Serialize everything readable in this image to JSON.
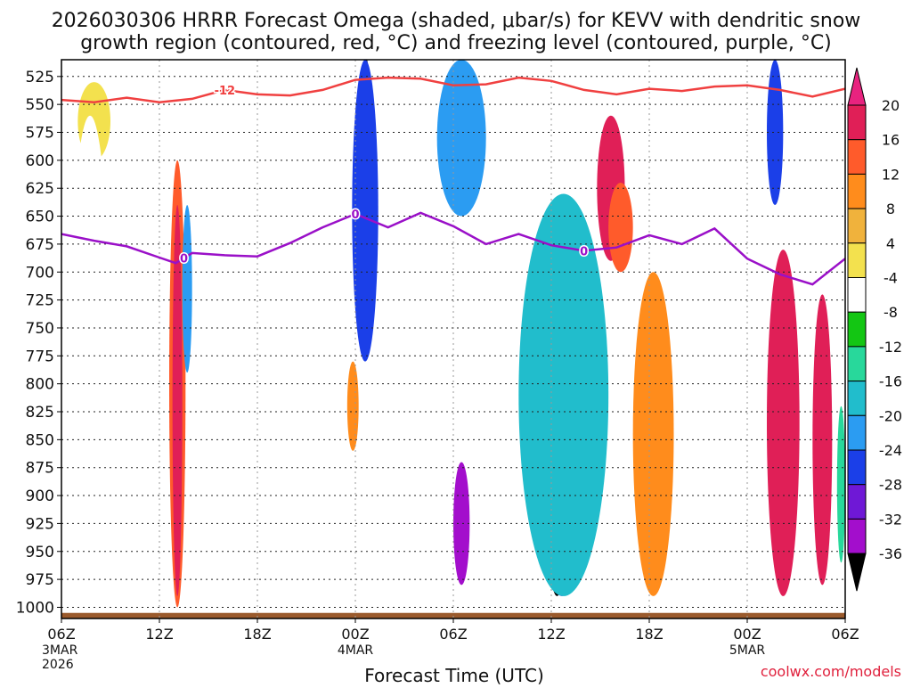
{
  "title_line1": "2026030306 HRRR Forecast Omega (shaded, μbar/s) for KEVV with dendritic snow",
  "title_line2": "growth region (contoured, red, °C) and freezing level (contoured, purple, °C)",
  "xlabel": "Forecast Time (UTC)",
  "watermark": "coolwx.com/models",
  "x_ticks": [
    "06Z",
    "12Z",
    "18Z",
    "00Z",
    "06Z",
    "12Z",
    "18Z",
    "00Z",
    "06Z"
  ],
  "x_subticks": [
    {
      "lines": [
        "3MAR",
        "2026"
      ]
    },
    {
      "lines": [
        "4MAR"
      ]
    },
    {
      "lines": [
        "5MAR"
      ]
    }
  ],
  "y_ticks": [
    525,
    550,
    575,
    600,
    625,
    650,
    675,
    700,
    725,
    750,
    775,
    800,
    825,
    850,
    875,
    900,
    925,
    950,
    975,
    1000
  ],
  "contour_labels": {
    "dgz": "-12",
    "freezing": "0"
  },
  "colorbar": {
    "labels": [
      "20",
      "16",
      "12",
      "8",
      "4",
      "-4",
      "-8",
      "-12",
      "-16",
      "-20",
      "-24",
      "-28",
      "-32",
      "-36"
    ],
    "colors": [
      "#e01f57",
      "#ff5b2b",
      "#ff8c1c",
      "#f0b23c",
      "#f3e14e",
      "#ffffff",
      "#13c613",
      "#28d89b",
      "#21bdcc",
      "#2b9cf2",
      "#1b3fe8",
      "#6f18d6",
      "#a30ecc",
      "#aaaaaa"
    ]
  },
  "chart_data": {
    "type": "heatmap",
    "title": "2026030306 HRRR Forecast Omega (shaded, μbar/s) for KEVV with dendritic snow growth region (contoured, red, °C) and freezing level (contoured, purple, °C)",
    "xlabel": "Forecast Time (UTC)",
    "ylabel": "",
    "x_hours_range": [
      0,
      48
    ],
    "y_pressure_range_hPa": [
      510,
      1010
    ],
    "y_inverted": true,
    "colorbar_levels": [
      -36,
      -32,
      -28,
      -24,
      -20,
      -16,
      -12,
      -8,
      -4,
      4,
      8,
      12,
      16,
      20
    ],
    "grid": true,
    "legend_position": "right",
    "series": [
      {
        "name": "-12",
        "points": [
          [
            0,
            546
          ],
          [
            2,
            548
          ],
          [
            4,
            544
          ],
          [
            6,
            548
          ],
          [
            8,
            545
          ],
          [
            10,
            537
          ],
          [
            12,
            541
          ],
          [
            14,
            542
          ],
          [
            16,
            537
          ],
          [
            18,
            528
          ],
          [
            20,
            526
          ],
          [
            22,
            527
          ],
          [
            24,
            533
          ],
          [
            26,
            532
          ],
          [
            28,
            526
          ],
          [
            30,
            529
          ],
          [
            32,
            537
          ],
          [
            34,
            541
          ],
          [
            36,
            536
          ],
          [
            38,
            538
          ],
          [
            40,
            534
          ],
          [
            42,
            533
          ],
          [
            44,
            537
          ],
          [
            46,
            543
          ],
          [
            48,
            536
          ]
        ]
      },
      {
        "name": "0",
        "points": [
          [
            0,
            666
          ],
          [
            2,
            672
          ],
          [
            4,
            677
          ],
          [
            6,
            687
          ],
          [
            7,
            692
          ],
          [
            8,
            683
          ],
          [
            10,
            685
          ],
          [
            12,
            686
          ],
          [
            14,
            674
          ],
          [
            16,
            660
          ],
          [
            18,
            648
          ],
          [
            20,
            660
          ],
          [
            22,
            647
          ],
          [
            24,
            659
          ],
          [
            26,
            675
          ],
          [
            28,
            666
          ],
          [
            30,
            676
          ],
          [
            32,
            681
          ],
          [
            34,
            678
          ],
          [
            36,
            667
          ],
          [
            38,
            675
          ],
          [
            40,
            661
          ],
          [
            42,
            688
          ],
          [
            44,
            702
          ],
          [
            46,
            711
          ],
          [
            48,
            688
          ]
        ]
      }
    ],
    "regions": [
      {
        "value": 4,
        "x": [
          1,
          3
        ],
        "y": [
          530,
          600
        ]
      },
      {
        "value": -4,
        "x": [
          0.5,
          3
        ],
        "y": [
          560,
          1000
        ]
      },
      {
        "value": 16,
        "x": [
          6.6,
          7.6
        ],
        "y": [
          600,
          1000
        ]
      },
      {
        "value": 20,
        "x": [
          6.8,
          7.4
        ],
        "y": [
          640,
          990
        ]
      },
      {
        "value": -20,
        "x": [
          7.4,
          8
        ],
        "y": [
          640,
          790
        ]
      },
      {
        "value": -36,
        "x": [
          18.5,
          18.9
        ],
        "y": [
          510,
          640
        ]
      },
      {
        "value": -24,
        "x": [
          17.8,
          19.4
        ],
        "y": [
          510,
          780
        ]
      },
      {
        "value": 12,
        "x": [
          17.5,
          18.2
        ],
        "y": [
          780,
          860
        ]
      },
      {
        "value": -32,
        "x": [
          24,
          25
        ],
        "y": [
          870,
          980
        ]
      },
      {
        "value": -20,
        "x": [
          23,
          26
        ],
        "y": [
          510,
          650
        ]
      },
      {
        "value": -36,
        "x": [
          29.5,
          31.2
        ],
        "y": [
          690,
          990
        ]
      },
      {
        "value": -28,
        "x": [
          28.8,
          32.5
        ],
        "y": [
          660,
          990
        ]
      },
      {
        "value": -16,
        "x": [
          28,
          33.5
        ],
        "y": [
          630,
          990
        ]
      },
      {
        "value": 20,
        "x": [
          32.8,
          34.5
        ],
        "y": [
          560,
          690
        ]
      },
      {
        "value": 16,
        "x": [
          33.5,
          35
        ],
        "y": [
          620,
          700
        ]
      },
      {
        "value": 20,
        "x": [
          35.8,
          36.8
        ],
        "y": [
          730,
          980
        ]
      },
      {
        "value": 12,
        "x": [
          35,
          37.5
        ],
        "y": [
          700,
          990
        ]
      },
      {
        "value": -24,
        "x": [
          43.2,
          44.2
        ],
        "y": [
          510,
          640
        ]
      },
      {
        "value": 20,
        "x": [
          43.2,
          45.2
        ],
        "y": [
          680,
          990
        ]
      },
      {
        "value": 20,
        "x": [
          46,
          47.2
        ],
        "y": [
          720,
          980
        ]
      },
      {
        "value": -12,
        "x": [
          47.5,
          48
        ],
        "y": [
          820,
          960
        ]
      }
    ],
    "surface_band_hPa": 1005
  }
}
